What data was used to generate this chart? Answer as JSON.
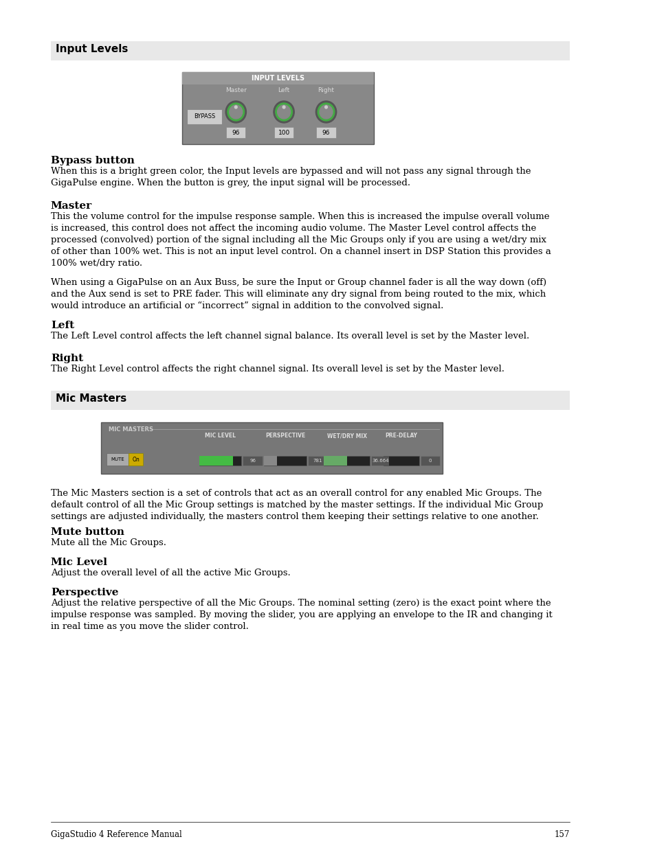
{
  "page_background": "#ffffff",
  "page_number": "157",
  "footer_text": "GigaStudio 4 Reference Manual",
  "section1_title": "Input Levels",
  "section2_title": "Mic Masters",
  "section_header_bg": "#e8e8e8",
  "section_header_color": "#000000",
  "body_color": "#000000",
  "title_font_size": 11,
  "body_font_size": 9.5,
  "subsection_title_font_size": 11,
  "bypass_body": "When this is a bright green color, the Input levels are bypassed and will not pass any signal through the\nGigaPulse engine. When the button is grey, the input signal will be processed.",
  "master_body1": "This the volume control for the impulse response sample. When this is increased the impulse overall volume\nis increased, this control does not affect the incoming audio volume. The Master Level control affects the\nprocessed (convolved) portion of the signal including all the Mic Groups only if you are using a wet/dry mix\nof other than 100% wet. This is not an input level control. On a channel insert in DSP Station this provides a\n100% wet/dry ratio.",
  "master_body2": "When using a GigaPulse on an Aux Buss, be sure the Input or Group channel fader is all the way down (off)\nand the Aux send is set to PRE fader. This will eliminate any dry signal from being routed to the mix, which\nwould introduce an artificial or “incorrect” signal in addition to the convolved signal.",
  "left_body": "The Left Level control affects the left channel signal balance. Its overall level is set by the Master level.",
  "right_body": "The Right Level control affects the right channel signal. Its overall level is set by the Master level.",
  "mic_body": "The Mic Masters section is a set of controls that act as an overall control for any enabled Mic Groups. The\ndefault control of all the Mic Group settings is matched by the master settings. If the individual Mic Group\nsettings are adjusted individually, the masters control them keeping their settings relative to one another.",
  "mute_body": "Mute all the Mic Groups.",
  "miclevel_body": "Adjust the overall level of all the active Mic Groups.",
  "perspective_body": "Adjust the relative perspective of all the Mic Groups. The nominal setting (zero) is the exact point where the\nimpulse response was sampled. By moving the slider, you are applying an envelope to the IR and changing it\nin real time as you move the slider control."
}
